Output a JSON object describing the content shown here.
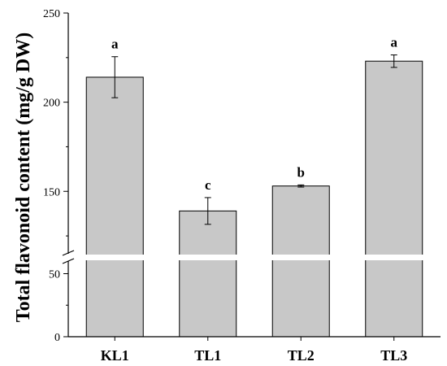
{
  "chart_data": {
    "type": "bar",
    "categories": [
      "KL1",
      "TL1",
      "TL2",
      "TL3"
    ],
    "values": [
      214,
      139,
      153,
      223
    ],
    "errors": [
      11.5,
      7.5,
      0.6,
      3.5
    ],
    "significance": [
      "a",
      "c",
      "b",
      "a"
    ],
    "ylabel": "Total flavonoid content (mg/g DW)",
    "y_axis_break": {
      "from": 60,
      "to": 115
    },
    "yticks_lower": [
      0,
      50
    ],
    "yticks_upper": [
      150,
      200,
      250
    ],
    "ylim": [
      0,
      250
    ],
    "bar_color": "#c8c8c8",
    "grid": false,
    "legend": "none"
  }
}
